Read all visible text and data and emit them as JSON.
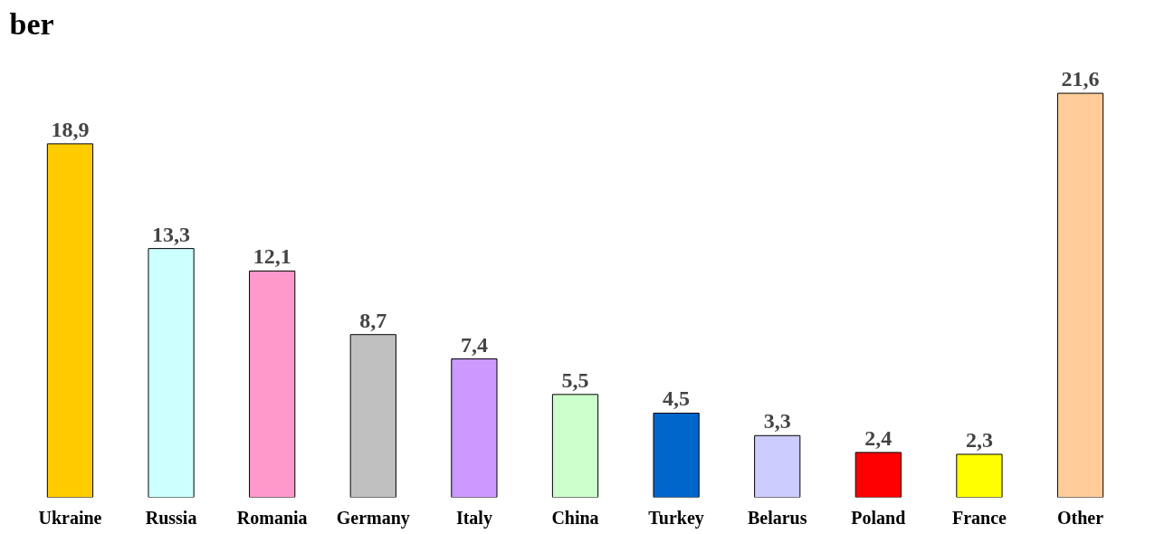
{
  "chart_data": {
    "type": "bar",
    "title": "ber",
    "categories": [
      "Ukraine",
      "Russia",
      "Romania",
      "Germany",
      "Italy",
      "China",
      "Turkey",
      "Belarus",
      "Poland",
      "France",
      "Other"
    ],
    "values": [
      18.9,
      13.3,
      12.1,
      8.7,
      7.4,
      5.5,
      4.5,
      3.3,
      2.4,
      2.3,
      21.6
    ],
    "value_labels": [
      "18,9",
      "13,3",
      "12,1",
      "8,7",
      "7,4",
      "5,5",
      "4,5",
      "3,3",
      "2,4",
      "2,3",
      "21,6"
    ],
    "colors": [
      "#ffcc00",
      "#ccffff",
      "#ff99cc",
      "#c0c0c0",
      "#cc99ff",
      "#ccffcc",
      "#0066cc",
      "#ccccff",
      "#ff0000",
      "#ffff00",
      "#ffcc99"
    ],
    "grid": false
  }
}
